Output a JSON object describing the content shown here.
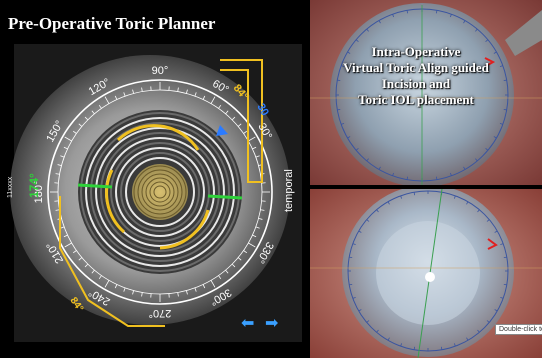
{
  "left_panel": {
    "title": "Pre-Operative Toric Planner",
    "angle_labels": [
      "90°",
      "60°",
      "30°",
      "150°",
      "120°",
      "180°",
      "210°",
      "240°",
      "270°",
      "300°",
      "330°"
    ],
    "steep_axis_value": "84°",
    "blue_value": "30",
    "green_value": "174°",
    "bottom_value": "84°",
    "side_label": "temporal",
    "vertical_id": "11xxxx",
    "nav_left": "⬅",
    "nav_right": "➡",
    "colors": {
      "ring": "#f0c020",
      "axis": "#2fd23a",
      "blue": "#2b7bff"
    }
  },
  "top_right_panel": {
    "overlay_lines": [
      "Intra-Operative",
      "Virtual Toric Align guided",
      "Incision and",
      "Toric IOL placement"
    ]
  },
  "bottom_right_panel": {
    "tooltip": "Double-click to ..."
  }
}
